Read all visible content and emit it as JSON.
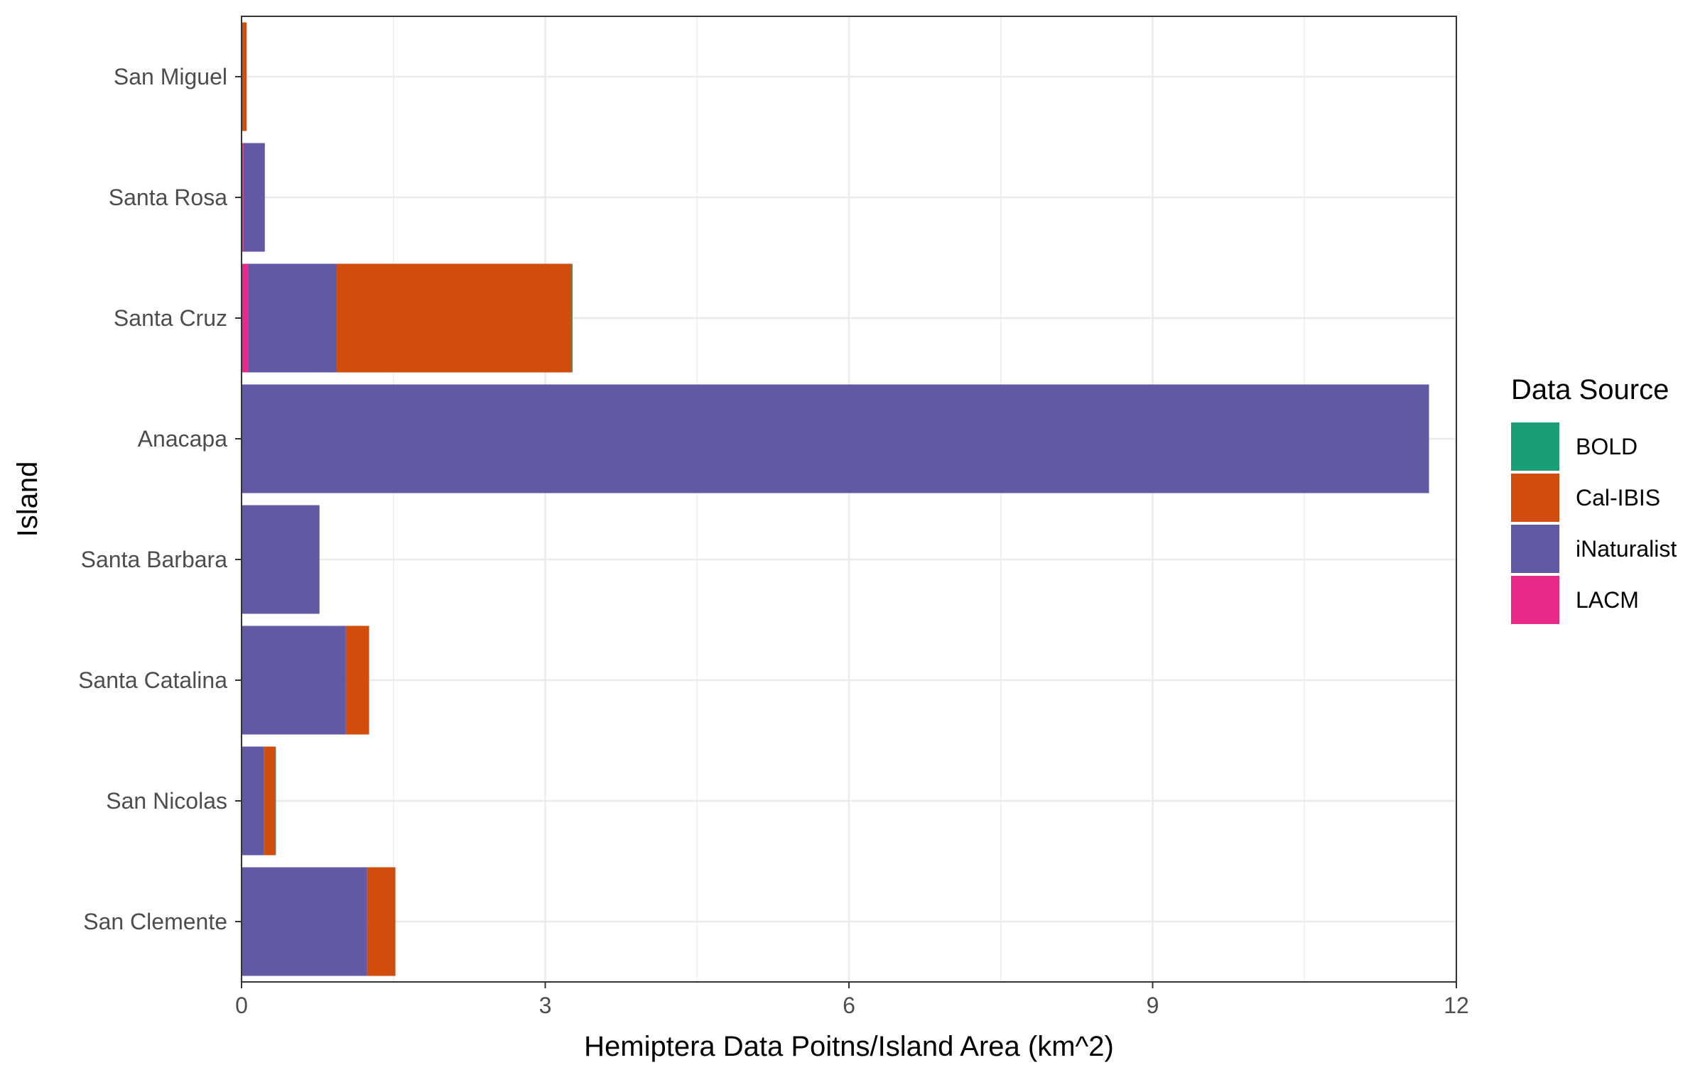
{
  "chart_data": {
    "type": "bar",
    "orientation": "horizontal",
    "stacked": true,
    "title": "",
    "xlabel": "Hemiptera Data Poitns/Island Area (km^2)",
    "ylabel": "Island",
    "xlim": [
      0,
      12
    ],
    "xticks": [
      0,
      3,
      6,
      9,
      12
    ],
    "xtick_labels": [
      "0",
      "3",
      "6",
      "9",
      "12"
    ],
    "grid": true,
    "legend_position": "right",
    "legend_title": "Data Source",
    "categories": [
      "San Miguel",
      "Santa Rosa",
      "Santa Cruz",
      "Anacapa",
      "Santa Barbara",
      "Santa Catalina",
      "San Nicolas",
      "San Clemente"
    ],
    "series": [
      {
        "name": "LACM",
        "color": "#e7298a",
        "values": [
          0,
          0.02,
          0.07,
          0,
          0,
          0,
          0,
          0
        ]
      },
      {
        "name": "iNaturalist",
        "color": "#6159a5",
        "values": [
          0,
          0.21,
          0.87,
          11.73,
          0.77,
          1.03,
          0.22,
          1.24
        ]
      },
      {
        "name": "Cal-IBIS",
        "color": "#d14d0b",
        "values": [
          0.05,
          0,
          2.32,
          0,
          0,
          0.23,
          0.11,
          0.28
        ]
      },
      {
        "name": "BOLD",
        "color": "#1b9e77",
        "values": [
          0,
          0,
          0.01,
          0,
          0,
          0,
          0.01,
          0
        ]
      }
    ],
    "legend_order": [
      "BOLD",
      "Cal-IBIS",
      "iNaturalist",
      "LACM"
    ]
  }
}
